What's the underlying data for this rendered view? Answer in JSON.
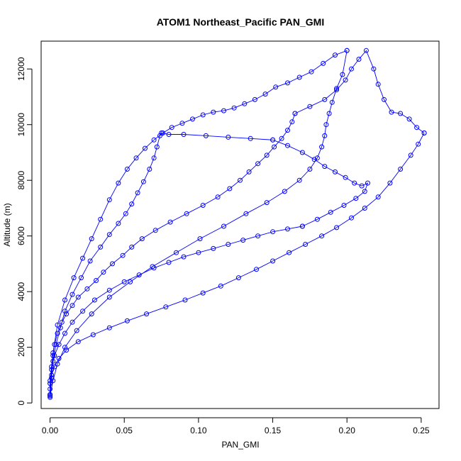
{
  "chart_data": {
    "type": "line",
    "title": "ATOM1 Northeast_Pacific PAN_GMI",
    "xlabel": "PAN_GMI",
    "ylabel": "Altitude (m)",
    "xlim": [
      -0.006,
      0.262
    ],
    "ylim": [
      -200,
      13000
    ],
    "xticks": [
      0.0,
      0.05,
      0.1,
      0.15,
      0.2,
      0.25
    ],
    "xtick_labels": [
      "0.00",
      "0.05",
      "0.10",
      "0.15",
      "0.20",
      "0.25"
    ],
    "yticks": [
      0,
      2000,
      4000,
      6000,
      8000,
      10000,
      12000
    ],
    "ytick_labels": [
      "0",
      "2000",
      "4000",
      "6000",
      "8000",
      "10000",
      "12000"
    ],
    "grid": false,
    "legend": "none",
    "series_color": "#0000ff",
    "marker": "open-circle",
    "series": [
      {
        "x": [
          0.0,
          0.0,
          0.001,
          0.001,
          0.002,
          0.003,
          0.005,
          0.008,
          0.011,
          0.015,
          0.019,
          0.025,
          0.031,
          0.036,
          0.042,
          0.049,
          0.055,
          0.062,
          0.071,
          0.081,
          0.092,
          0.103,
          0.113,
          0.121,
          0.128,
          0.134,
          0.14,
          0.146,
          0.151,
          0.156,
          0.16,
          0.163,
          0.165
        ],
        "y": [
          200,
          500,
          900,
          1300,
          1700,
          2100,
          2500,
          2900,
          3200,
          3500,
          3800,
          4100,
          4400,
          4700,
          5000,
          5300,
          5600,
          5900,
          6200,
          6500,
          6800,
          7100,
          7400,
          7700,
          8000,
          8300,
          8600,
          8900,
          9200,
          9500,
          9800,
          10100,
          10400
        ]
      },
      {
        "x": [
          0.165,
          0.175,
          0.185,
          0.193,
          0.199,
          0.203,
          0.208,
          0.213,
          0.218,
          0.221,
          0.225,
          0.23,
          0.236,
          0.242,
          0.247,
          0.252
        ],
        "y": [
          10400,
          10650,
          10900,
          11250,
          11600,
          12000,
          12350,
          12660,
          12000,
          11450,
          10900,
          10450,
          10400,
          10200,
          9900,
          9700
        ]
      },
      {
        "x": [
          0.252,
          0.248,
          0.243,
          0.236,
          0.229,
          0.221,
          0.212,
          0.203,
          0.193,
          0.183,
          0.172,
          0.161,
          0.15,
          0.139,
          0.127,
          0.115,
          0.103,
          0.091,
          0.078,
          0.065,
          0.052,
          0.04,
          0.029,
          0.019,
          0.011,
          0.006,
          0.003,
          0.001,
          0.0,
          0.0
        ],
        "y": [
          9700,
          9300,
          8900,
          8400,
          7900,
          7400,
          7000,
          6650,
          6300,
          6000,
          5700,
          5400,
          5100,
          4800,
          4500,
          4200,
          3950,
          3700,
          3450,
          3200,
          2950,
          2700,
          2450,
          2200,
          1900,
          1600,
          1300,
          1000,
          700,
          300
        ]
      },
      {
        "x": [
          0.0,
          0.001,
          0.002,
          0.004,
          0.007,
          0.01,
          0.015,
          0.021,
          0.027,
          0.034,
          0.04,
          0.046,
          0.051,
          0.055,
          0.059,
          0.063,
          0.067,
          0.07,
          0.072,
          0.074,
          0.075,
          0.08,
          0.09,
          0.105,
          0.12,
          0.135,
          0.15
        ],
        "y": [
          300,
          900,
          1500,
          2100,
          2700,
          3300,
          3900,
          4500,
          5100,
          5600,
          6050,
          6450,
          6800,
          7150,
          7550,
          7950,
          8400,
          8800,
          9200,
          9600,
          9700,
          9650,
          9650,
          9600,
          9550,
          9500,
          9450
        ]
      },
      {
        "x": [
          0.15,
          0.16,
          0.17,
          0.178,
          0.185,
          0.192,
          0.199,
          0.205,
          0.21,
          0.214,
          0.212,
          0.206,
          0.198,
          0.189,
          0.18,
          0.17
        ],
        "y": [
          9450,
          9250,
          9000,
          8750,
          8500,
          8300,
          8100,
          7900,
          7800,
          7900,
          7600,
          7350,
          7100,
          6850,
          6600,
          6350
        ]
      },
      {
        "x": [
          0.17,
          0.16,
          0.15,
          0.14,
          0.13,
          0.12,
          0.11,
          0.1,
          0.09,
          0.08,
          0.07,
          0.06,
          0.05,
          0.04,
          0.03,
          0.022,
          0.015,
          0.01,
          0.006,
          0.003,
          0.001,
          0.0,
          0.0
        ],
        "y": [
          6350,
          6250,
          6150,
          6000,
          5850,
          5700,
          5550,
          5400,
          5250,
          5050,
          4850,
          4600,
          4350,
          4050,
          3700,
          3300,
          2900,
          2500,
          2100,
          1700,
          1200,
          700,
          250
        ]
      },
      {
        "x": [
          0.0,
          0.002,
          0.005,
          0.01,
          0.018,
          0.028,
          0.04,
          0.054,
          0.069,
          0.085,
          0.101,
          0.117,
          0.132,
          0.146,
          0.158,
          0.168,
          0.175,
          0.18,
          0.183,
          0.185,
          0.186,
          0.188,
          0.19,
          0.193,
          0.197,
          0.2
        ],
        "y": [
          250,
          800,
          1400,
          2000,
          2600,
          3200,
          3800,
          4350,
          4900,
          5400,
          5900,
          6350,
          6800,
          7200,
          7600,
          8000,
          8400,
          8800,
          9200,
          9600,
          10000,
          10400,
          10800,
          11300,
          11800,
          12660
        ]
      },
      {
        "x": [
          0.2,
          0.192,
          0.184,
          0.176,
          0.168,
          0.16,
          0.152,
          0.145,
          0.138,
          0.131,
          0.124,
          0.117,
          0.11,
          0.103,
          0.096,
          0.089,
          0.082,
          0.076,
          0.07,
          0.064,
          0.058,
          0.052,
          0.046,
          0.04,
          0.034,
          0.028,
          0.022,
          0.016,
          0.01,
          0.005,
          0.002,
          0.0
        ],
        "y": [
          12660,
          12500,
          12200,
          11900,
          11700,
          11500,
          11350,
          11100,
          10900,
          10750,
          10600,
          10500,
          10450,
          10350,
          10200,
          10050,
          9900,
          9700,
          9450,
          9150,
          8800,
          8400,
          7900,
          7300,
          6600,
          5900,
          5200,
          4500,
          3700,
          2800,
          1800,
          800
        ]
      }
    ]
  }
}
